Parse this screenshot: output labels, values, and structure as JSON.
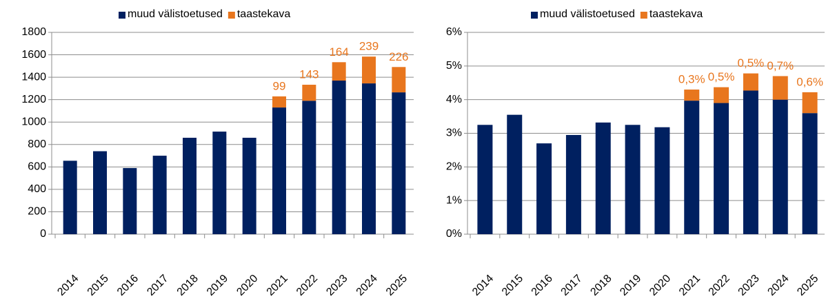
{
  "chart_data": [
    {
      "type": "bar",
      "stacked": true,
      "grid": true,
      "categories": [
        "2014",
        "2015",
        "2016",
        "2017",
        "2018",
        "2019",
        "2020",
        "2021",
        "2022",
        "2023",
        "2024",
        "2025"
      ],
      "series": [
        {
          "name": "muud välistoetused",
          "color": "#002060",
          "values": [
            655,
            740,
            590,
            700,
            860,
            915,
            860,
            1130,
            1190,
            1370,
            1345,
            1265
          ]
        },
        {
          "name": "taastekava",
          "color": "#E8761E",
          "values": [
            null,
            null,
            null,
            null,
            null,
            null,
            null,
            99,
            143,
            164,
            239,
            226
          ]
        }
      ],
      "ylim": [
        0,
        1800
      ],
      "yticks": [
        0,
        200,
        400,
        600,
        800,
        1000,
        1200,
        1400,
        1600,
        1800
      ]
    },
    {
      "type": "bar",
      "stacked": true,
      "grid": true,
      "categories": [
        "2014",
        "2015",
        "2016",
        "2017",
        "2018",
        "2019",
        "2020",
        "2021",
        "2022",
        "2023",
        "2024",
        "2025"
      ],
      "series": [
        {
          "name": "muud välistoetused",
          "color": "#002060",
          "values": [
            3.25,
            3.55,
            2.7,
            2.95,
            3.32,
            3.25,
            3.18,
            3.97,
            3.9,
            4.27,
            4.0,
            3.6
          ]
        },
        {
          "name": "taastekava",
          "color": "#E8761E",
          "values": [
            null,
            null,
            null,
            null,
            null,
            null,
            null,
            0.33,
            0.47,
            0.51,
            0.7,
            0.62
          ],
          "value_labels": [
            null,
            null,
            null,
            null,
            null,
            null,
            null,
            "0,3%",
            "0,5%",
            "0,5%",
            "0,7%",
            "0,6%"
          ]
        }
      ],
      "ylim": [
        0,
        6
      ],
      "yticks": [
        {
          "value": 0,
          "label": "0%"
        },
        {
          "value": 1,
          "label": "1%"
        },
        {
          "value": 2,
          "label": "2%"
        },
        {
          "value": 3,
          "label": "3%"
        },
        {
          "value": 4,
          "label": "4%"
        },
        {
          "value": 5,
          "label": "5%"
        },
        {
          "value": 6,
          "label": "6%"
        }
      ]
    }
  ]
}
